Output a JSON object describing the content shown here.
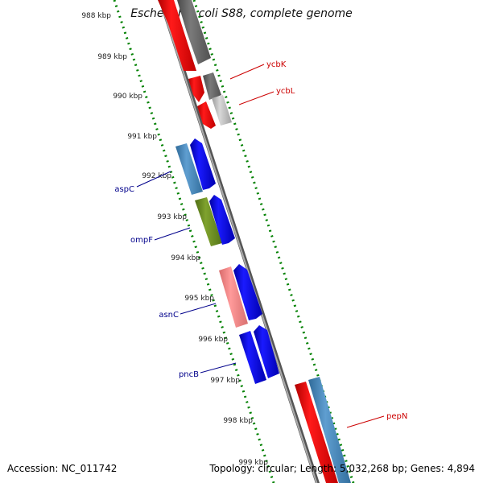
{
  "title": "Escherichia coli S88, complete genome",
  "footer": {
    "accession": "Accession: NC_011742",
    "summary": "Topology: circular; Length: 5,032,268 bp; Genes: 4,894"
  },
  "scale_labels": [
    "988 kbp",
    "989 kbp",
    "990 kbp",
    "991 kbp",
    "992 kbp",
    "993 kbp",
    "994 kbp",
    "995 kbp",
    "996 kbp",
    "997 kbp",
    "998 kbp",
    "999 kbp"
  ],
  "gene_labels": [
    {
      "name": "ycbK",
      "strand": "reverse",
      "color": "#cc0000"
    },
    {
      "name": "ycbL",
      "strand": "reverse",
      "color": "#cc0000"
    },
    {
      "name": "aspC",
      "strand": "forward",
      "color": "#00008b"
    },
    {
      "name": "ompF",
      "strand": "forward",
      "color": "#00008b"
    },
    {
      "name": "asnC",
      "strand": "forward",
      "color": "#00008b"
    },
    {
      "name": "pncB",
      "strand": "forward",
      "color": "#00008b"
    },
    {
      "name": "pepN",
      "strand": "reverse",
      "color": "#cc0000"
    }
  ],
  "colors": {
    "backbone": "#808080",
    "tick": "#008000",
    "forward_cds": "#0000ff",
    "reverse_cds": "#ff0000",
    "forward_label": "#00008b",
    "reverse_label": "#cc0000"
  }
}
